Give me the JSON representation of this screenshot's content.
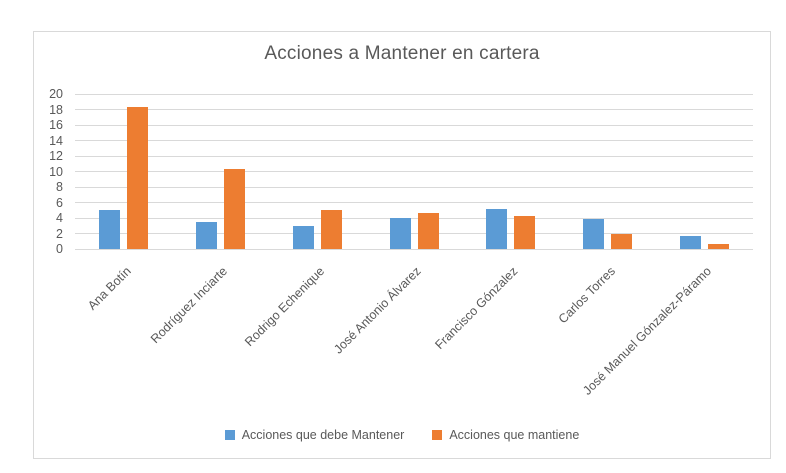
{
  "chart_data": {
    "type": "bar",
    "title": "Acciones a Mantener en cartera",
    "categories": [
      "Ana Botín",
      "Rodríguez Inciarte",
      "Rodrigo Echenique",
      "José Antonio Álvarez",
      "Francisco Gónzalez",
      "Carlos Torres",
      "José Manuel Gónzalez-Páramo"
    ],
    "series": [
      {
        "name": "Acciones que debe Mantener",
        "color": "#5B9BD5",
        "values": [
          5,
          3.5,
          3,
          4,
          5.1,
          3.9,
          1.7
        ]
      },
      {
        "name": "Acciones que mantiene",
        "color": "#ED7D31",
        "values": [
          18.3,
          10.3,
          5,
          4.6,
          4.3,
          2,
          0.6
        ]
      }
    ],
    "xlabel": "",
    "ylabel": "",
    "ylim": [
      0,
      20
    ],
    "ytick_step": 2,
    "ytick_labels": [
      "0",
      "2",
      "4",
      "6",
      "8",
      "10",
      "12",
      "14",
      "16",
      "18",
      "20"
    ],
    "grid": true,
    "legend_position": "bottom",
    "palette": {
      "grid": "#D9D9D9",
      "axis_text": "#595959",
      "title_text": "#595959",
      "frame_border": "#D9D9D9",
      "background": "#FFFFFF"
    }
  }
}
